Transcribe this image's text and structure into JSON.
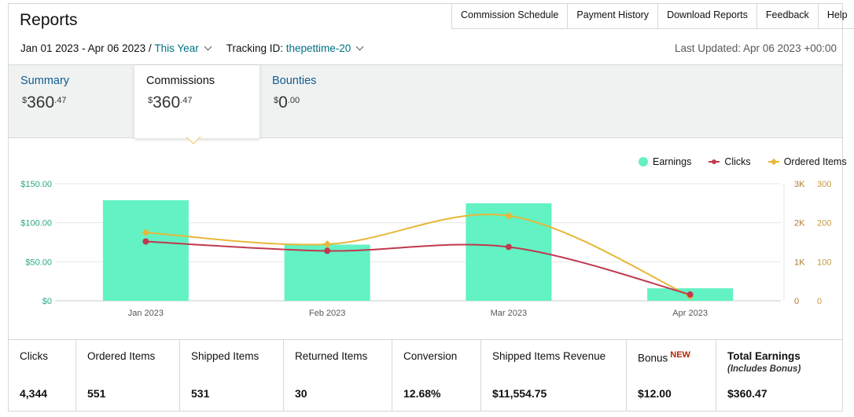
{
  "header": {
    "title": "Reports",
    "nav": [
      "Commission Schedule",
      "Payment History",
      "Download Reports",
      "Feedback",
      "Help"
    ]
  },
  "filters": {
    "date_range": "Jan 01 2023 - Apr 06 2023",
    "period": "This Year",
    "tracking_label": "Tracking ID:",
    "tracking_id": "thepettime-20",
    "last_updated": "Last Updated: Apr 06 2023 +00:00"
  },
  "tabs": [
    {
      "label": "Summary",
      "dollars": "360",
      "cents": "47"
    },
    {
      "label": "Commissions",
      "dollars": "360",
      "cents": "47",
      "active": true
    },
    {
      "label": "Bounties",
      "dollars": "0",
      "cents": "00"
    }
  ],
  "legend": [
    {
      "label": "Earnings",
      "color": "#62f2c4"
    },
    {
      "label": "Clicks",
      "color": "#c0394f"
    },
    {
      "label": "Ordered Items",
      "color": "#e8b73a"
    }
  ],
  "chart_data": {
    "type": "bar",
    "categories": [
      "Jan 2023",
      "Feb 2023",
      "Mar 2023",
      "Apr 2023"
    ],
    "series": [
      {
        "name": "Earnings",
        "type": "bar",
        "axis": "left",
        "values": [
          129,
          72,
          125,
          16
        ],
        "color": "#62f2c4"
      },
      {
        "name": "Clicks",
        "type": "line",
        "axis": "right-inner",
        "values": [
          1520,
          1280,
          1380,
          160
        ],
        "color": "#c0394f"
      },
      {
        "name": "Ordered Items",
        "type": "line",
        "axis": "right-outer",
        "values": [
          175,
          145,
          218,
          12
        ],
        "color": "#e8b73a"
      }
    ],
    "y_left": {
      "ticks": [
        "$0",
        "$50.00",
        "$100.00",
        "$150.00"
      ],
      "ylim": [
        0,
        150
      ],
      "color": "#2aa88a"
    },
    "y_right_inner": {
      "ticks": [
        "0",
        "1K",
        "2K",
        "3K"
      ],
      "ylim": [
        0,
        3000
      ],
      "color": "#b07a32"
    },
    "y_right_outer": {
      "ticks": [
        "0",
        "100",
        "200",
        "300"
      ],
      "ylim": [
        0,
        300
      ],
      "color": "#c79a3a"
    },
    "grid": true,
    "legend_position": "top-right"
  },
  "stats": [
    {
      "label": "Clicks",
      "value": "4,344"
    },
    {
      "label": "Ordered Items",
      "value": "551"
    },
    {
      "label": "Shipped Items",
      "value": "531"
    },
    {
      "label": "Returned Items",
      "value": "30"
    },
    {
      "label": "Conversion",
      "value": "12.68%"
    },
    {
      "label": "Shipped Items Revenue",
      "value": "$11,554.75"
    },
    {
      "label": "Bonus",
      "badge": "NEW",
      "value": "$12.00"
    },
    {
      "label": "Total Earnings",
      "sub": "(Includes Bonus)",
      "value": "$360.47"
    }
  ]
}
